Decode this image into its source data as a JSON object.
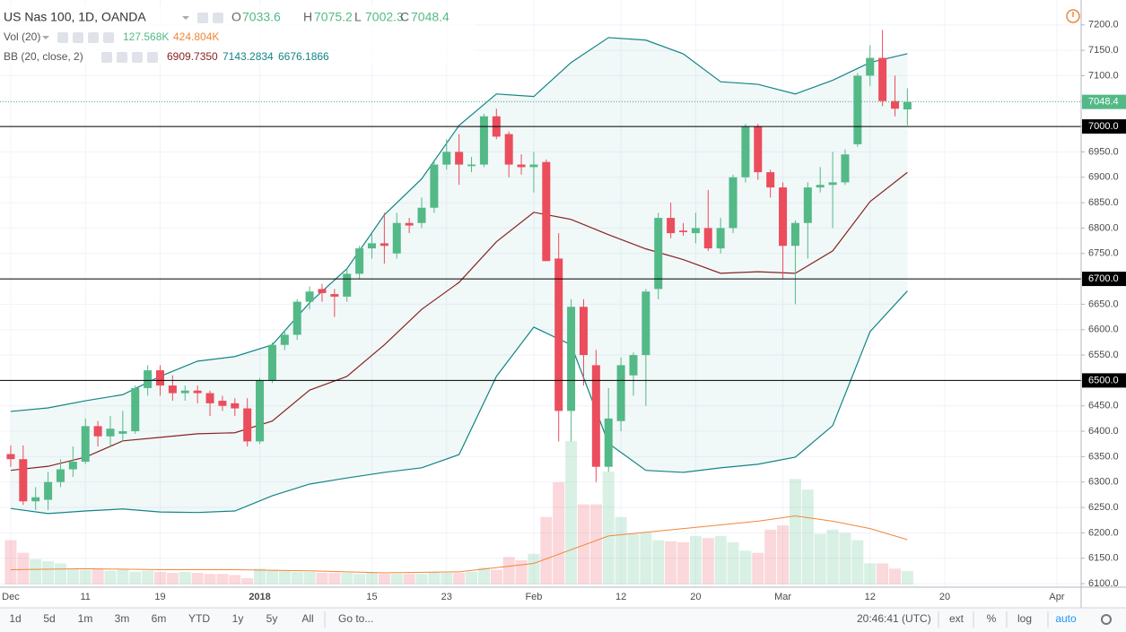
{
  "chart_data": {
    "type": "candlestick",
    "title": "US Nas 100, 1D, OANDA",
    "ohlc_labels": [
      "O",
      "H",
      "L",
      "C"
    ],
    "open": [
      6355,
      6345,
      6262,
      6265,
      6300,
      6325,
      6340,
      6410,
      6390,
      6395,
      6400,
      6485,
      6520,
      6490,
      6475,
      6480,
      6475,
      6460,
      6455,
      6445,
      6380,
      6500,
      6570,
      6590,
      6655,
      6680,
      6670,
      6665,
      6710,
      6760,
      6770,
      6750,
      6810,
      6810,
      6840,
      6925,
      6950,
      6922,
      6925,
      7020,
      6985,
      6925,
      6920,
      6930,
      6740,
      6440,
      6645,
      6530,
      6330,
      6420,
      6510,
      6550,
      6680,
      6820,
      6795,
      6790,
      6800,
      6760,
      6800,
      6900,
      7000,
      6910,
      6880,
      6765,
      6810,
      6880,
      6885,
      6890,
      6965,
      7100,
      7135,
      7050,
      7033.6
    ],
    "high": [
      6372,
      6372,
      6290,
      6320,
      6345,
      6370,
      6425,
      6420,
      6430,
      6440,
      6490,
      6530,
      6530,
      6510,
      6490,
      6490,
      6480,
      6470,
      6465,
      6465,
      6505,
      6575,
      6600,
      6660,
      6685,
      6690,
      6680,
      6720,
      6765,
      6790,
      6830,
      6830,
      6820,
      6860,
      6935,
      6975,
      6985,
      6940,
      7025,
      7035,
      6990,
      6945,
      6950,
      6935,
      6790,
      6660,
      6660,
      6560,
      6485,
      6545,
      6555,
      6680,
      6830,
      6850,
      6810,
      6830,
      6875,
      6820,
      6905,
      7005,
      7005,
      6915,
      6890,
      6815,
      6890,
      6920,
      6950,
      6955,
      7105,
      7160,
      7190,
      7100,
      7075.2
    ],
    "low": [
      6330,
      6255,
      6245,
      6245,
      6290,
      6310,
      6335,
      6370,
      6370,
      6380,
      6395,
      6470,
      6470,
      6460,
      6460,
      6455,
      6430,
      6440,
      6430,
      6370,
      6375,
      6495,
      6560,
      6580,
      6640,
      6655,
      6625,
      6655,
      6700,
      6740,
      6730,
      6740,
      6790,
      6800,
      6830,
      6915,
      6885,
      6910,
      6920,
      6975,
      6900,
      6905,
      6870,
      6735,
      6380,
      6380,
      6490,
      6300,
      6320,
      6400,
      6470,
      6450,
      6660,
      6780,
      6785,
      6770,
      6755,
      6750,
      6790,
      6890,
      6895,
      6860,
      6700,
      6650,
      6740,
      6870,
      6800,
      6885,
      6960,
      7080,
      7040,
      7020,
      7002.3
    ],
    "close": [
      6345,
      6262,
      6270,
      6300,
      6325,
      6340,
      6410,
      6390,
      6405,
      6400,
      6485,
      6520,
      6490,
      6475,
      6480,
      6475,
      6455,
      6450,
      6445,
      6380,
      6500,
      6570,
      6590,
      6655,
      6675,
      6672,
      6665,
      6710,
      6760,
      6770,
      6765,
      6810,
      6805,
      6840,
      6925,
      6950,
      6925,
      6925,
      7020,
      6980,
      6925,
      6920,
      6925,
      6735,
      6440,
      6645,
      6550,
      6330,
      6425,
      6530,
      6550,
      6675,
      6820,
      6790,
      6792,
      6800,
      6760,
      6800,
      6900,
      7000,
      6910,
      6880,
      6765,
      6810,
      6880,
      6885,
      6890,
      6945,
      7100,
      7135,
      7050,
      7035,
      7048.4
    ],
    "up_color": "#53b987",
    "down_color": "#eb4d5c",
    "volume": {
      "name": "Vol (20)",
      "values": [
        420,
        300,
        240,
        220,
        200,
        150,
        140,
        150,
        130,
        140,
        120,
        130,
        120,
        110,
        120,
        110,
        100,
        100,
        90,
        60,
        150,
        140,
        130,
        120,
        120,
        110,
        110,
        110,
        100,
        110,
        100,
        100,
        100,
        100,
        120,
        110,
        110,
        120,
        160,
        140,
        260,
        230,
        290,
        640,
        970,
        1360,
        760,
        760,
        1070,
        640,
        480,
        490,
        420,
        410,
        400,
        460,
        440,
        460,
        400,
        320,
        300,
        520,
        560,
        1000,
        900,
        480,
        520,
        490,
        420,
        200,
        200,
        150,
        127.568
      ],
      "last_label": "127.568K"
    },
    "volume_ma": {
      "x": [
        0,
        6,
        12,
        18,
        24,
        30,
        36,
        42,
        48,
        54,
        60,
        63,
        66,
        69,
        72
      ],
      "values": [
        140,
        150,
        140,
        140,
        130,
        110,
        120,
        200,
        460,
        530,
        600,
        650,
        600,
        530,
        424.804
      ],
      "last_label": "424.804K",
      "color": "#f0873a"
    },
    "bollinger": {
      "name": "BB (20, close, 2)",
      "x": [
        0,
        3,
        6,
        9,
        12,
        15,
        18,
        21,
        24,
        27,
        30,
        33,
        36,
        39,
        42,
        45,
        48,
        51,
        54,
        57,
        60,
        63,
        66,
        69,
        72
      ],
      "series": [
        {
          "name": "basis",
          "color": "#872323",
          "values": [
            6323,
            6331,
            6349,
            6381,
            6388,
            6395,
            6397,
            6420,
            6481,
            6508,
            6570,
            6640,
            6693,
            6773,
            6831,
            6817,
            6787,
            6759,
            6738,
            6711,
            6714,
            6711,
            6755,
            6852,
            6909.735
          ],
          "last_label": "6909.7350"
        },
        {
          "name": "upper",
          "color": "#138484",
          "values": [
            6439,
            6446,
            6460,
            6472,
            6508,
            6538,
            6547,
            6570,
            6653,
            6720,
            6826,
            6897,
            7002,
            7064,
            7059,
            7126,
            7175,
            7170,
            7143,
            7088,
            7083,
            7064,
            7091,
            7126,
            7143.2834
          ],
          "last_label": "7143.2834"
        },
        {
          "name": "lower",
          "color": "#138484",
          "values": [
            6248,
            6238,
            6243,
            6247,
            6241,
            6240,
            6243,
            6273,
            6296,
            6308,
            6319,
            6328,
            6354,
            6508,
            6605,
            6570,
            6376,
            6323,
            6319,
            6328,
            6335,
            6349,
            6411,
            6596,
            6676.1866
          ],
          "last_label": "6676.1866"
        }
      ]
    },
    "hlines": [
      {
        "value": 7000,
        "label": "7000.0"
      },
      {
        "value": 6700,
        "label": "6700.0"
      },
      {
        "value": 6500,
        "label": "6500.0"
      }
    ],
    "ylim": [
      6093,
      7249
    ],
    "yticks": [
      {
        "value": 6100,
        "label": "6100.0"
      },
      {
        "value": 6150,
        "label": "6150.0"
      },
      {
        "value": 6200,
        "label": "6200.0"
      },
      {
        "value": 6250,
        "label": "6250.0"
      },
      {
        "value": 6300,
        "label": "6300.0"
      },
      {
        "value": 6350,
        "label": "6350.0"
      },
      {
        "value": 6400,
        "label": "6400.0"
      },
      {
        "value": 6450,
        "label": "6450.0"
      },
      {
        "value": 6500,
        "label": "6500.0"
      },
      {
        "value": 6550,
        "label": "6550.0"
      },
      {
        "value": 6600,
        "label": "6600.0"
      },
      {
        "value": 6650,
        "label": "6650.0"
      },
      {
        "value": 6700,
        "label": "6700.0"
      },
      {
        "value": 6750,
        "label": "6750.0"
      },
      {
        "value": 6800,
        "label": "6800.0"
      },
      {
        "value": 6850,
        "label": "6850.0"
      },
      {
        "value": 6900,
        "label": "6900.0"
      },
      {
        "value": 6950,
        "label": "6950.0"
      },
      {
        "value": 7000,
        "label": "7000.0"
      },
      {
        "value": 7050,
        "label": "7050.0"
      },
      {
        "value": 7100,
        "label": "7100.0"
      },
      {
        "value": 7150,
        "label": "7150.0"
      },
      {
        "value": 7200,
        "label": "7200.0"
      }
    ],
    "xlim": [
      -0.86,
      85.95
    ],
    "xticks": [
      {
        "value": 0,
        "label": "Dec"
      },
      {
        "value": 6,
        "label": "11"
      },
      {
        "value": 12,
        "label": "19"
      },
      {
        "value": 20,
        "label": "2018"
      },
      {
        "value": 29,
        "label": "15"
      },
      {
        "value": 35,
        "label": "23"
      },
      {
        "value": 42,
        "label": "Feb"
      },
      {
        "value": 49,
        "label": "12"
      },
      {
        "value": 55,
        "label": "20"
      },
      {
        "value": 62,
        "label": "Mar"
      },
      {
        "value": 69,
        "label": "12"
      },
      {
        "value": 75,
        "label": "20"
      },
      {
        "value": 84,
        "label": "Apr"
      }
    ],
    "grid": true
  },
  "toolbar": {
    "ranges": [
      "1d",
      "5d",
      "1m",
      "3m",
      "6m",
      "YTD",
      "1y",
      "5y",
      "All"
    ],
    "goto": "Go to...",
    "time": "20:46:41 (UTC)",
    "options": [
      "ext",
      "%",
      "log",
      "auto"
    ]
  }
}
